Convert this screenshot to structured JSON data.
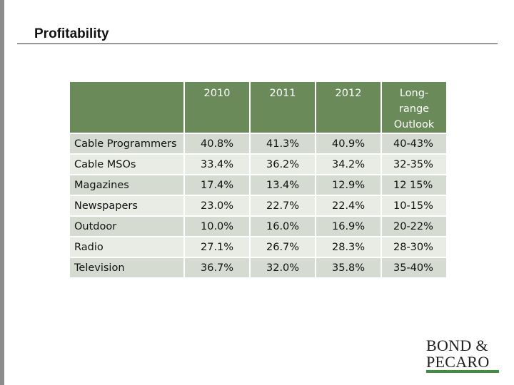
{
  "slide": {
    "title": "Profitability"
  },
  "table": {
    "headers": [
      "2010",
      "2011",
      "2012",
      "Long-range Outlook"
    ],
    "header_outlook_lines": [
      "Long-",
      "range",
      "Outlook"
    ],
    "rows": [
      {
        "label": "Cable Programmers",
        "values": [
          "40.8%",
          "41.3%",
          "40.9%",
          "40-43%"
        ]
      },
      {
        "label": "Cable MSOs",
        "values": [
          "33.4%",
          "36.2%",
          "34.2%",
          "32-35%"
        ]
      },
      {
        "label": "Magazines",
        "values": [
          "17.4%",
          "13.4%",
          "12.9%",
          "12 15%"
        ]
      },
      {
        "label": "Newspapers",
        "values": [
          "23.0%",
          "22.7%",
          "22.4%",
          "10-15%"
        ]
      },
      {
        "label": "Outdoor",
        "values": [
          "10.0%",
          "16.0%",
          "16.9%",
          "20-22%"
        ]
      },
      {
        "label": "Radio",
        "values": [
          "27.1%",
          "26.7%",
          "28.3%",
          "28-30%"
        ]
      },
      {
        "label": "Television",
        "values": [
          "36.7%",
          "32.0%",
          "35.8%",
          "35-40%"
        ]
      }
    ]
  },
  "logo": {
    "line1": "BOND &",
    "line2": "PECARO"
  },
  "colors": {
    "header_bg": "#6a8a5a",
    "row_dark": "#d6dbd1",
    "row_light": "#e9ebe5",
    "logo_accent": "#3e8e3e",
    "left_bar": "#8c8c8c"
  }
}
